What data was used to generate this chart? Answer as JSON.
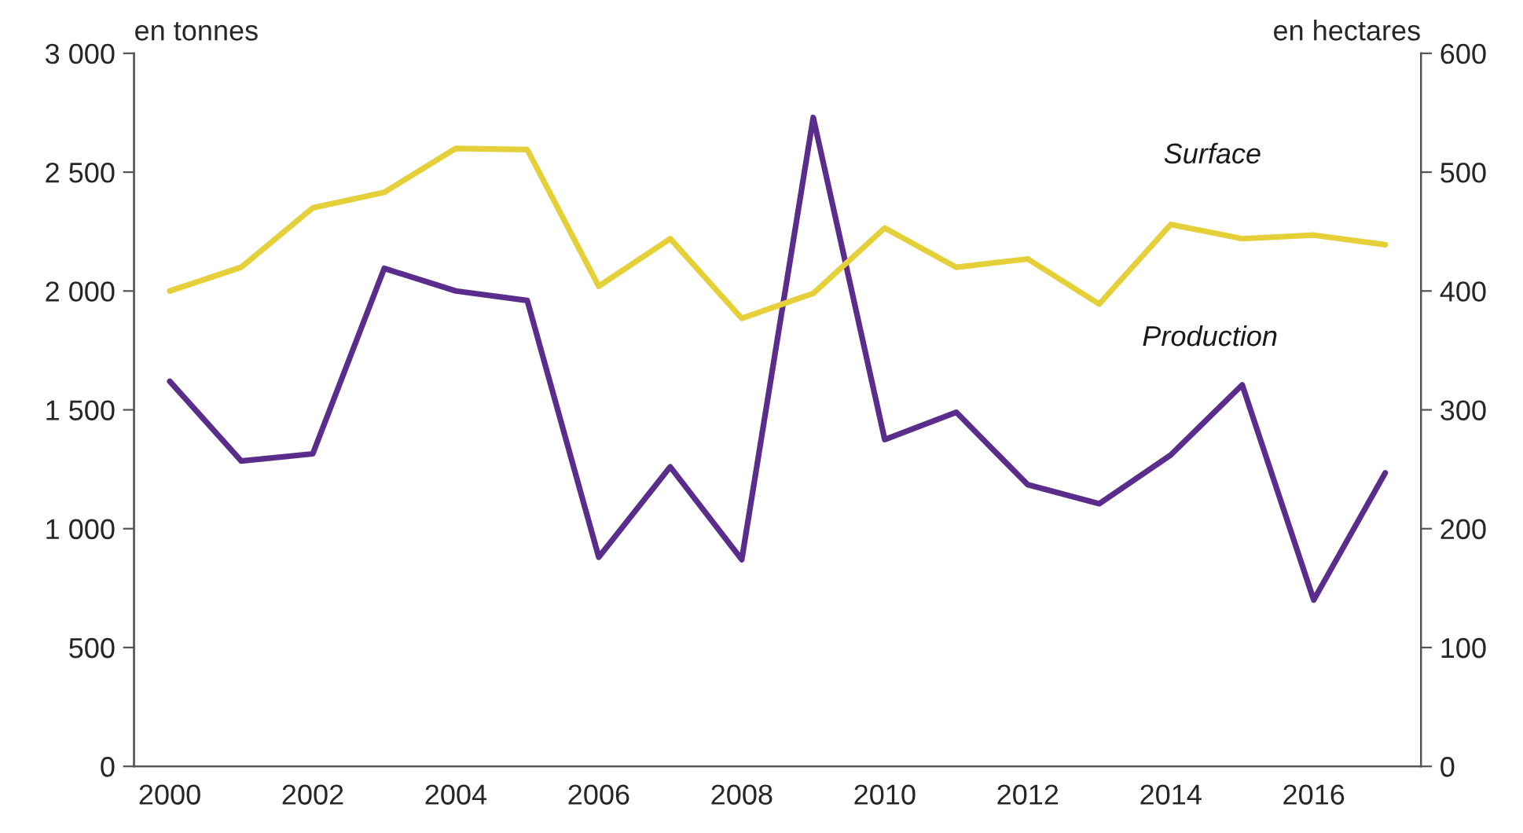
{
  "chart_data": {
    "type": "line",
    "ylabel": "en tonnes",
    "y2label": "en hectares",
    "categories": [
      "2000",
      null,
      "2002",
      null,
      "2004",
      null,
      "2006",
      null,
      "2008",
      null,
      "2010",
      null,
      "2012",
      null,
      "2014",
      null,
      "2016",
      null
    ],
    "series": [
      {
        "name": "Surface",
        "color": "#e5d03a",
        "axis": "y2",
        "values": [
          400,
          420,
          470,
          483,
          520,
          519,
          404,
          444,
          377,
          398,
          453,
          420,
          427,
          389,
          456,
          444,
          447,
          439
        ]
      },
      {
        "name": "Production",
        "color": "#5a2d8c",
        "values": [
          1620,
          1285,
          1315,
          2095,
          2000,
          1960,
          880,
          1260,
          870,
          2730,
          1375,
          1490,
          1185,
          1105,
          1310,
          1605,
          700,
          1235
        ]
      }
    ],
    "ylim": [
      0,
      3000
    ],
    "yticks": [
      0,
      500,
      {
        "value": 1000,
        "label": "1 000"
      },
      {
        "value": 1500,
        "label": "1 500"
      },
      {
        "value": 2000,
        "label": "2 000"
      },
      {
        "value": 2500,
        "label": "2 500"
      },
      {
        "value": 3000,
        "label": "3 000"
      }
    ],
    "y2lim": [
      0,
      600
    ],
    "y2ticks": [
      0,
      100,
      200,
      300,
      400,
      500,
      600
    ],
    "grid": false,
    "legend": false,
    "marker": "none",
    "line_style": "solid"
  }
}
